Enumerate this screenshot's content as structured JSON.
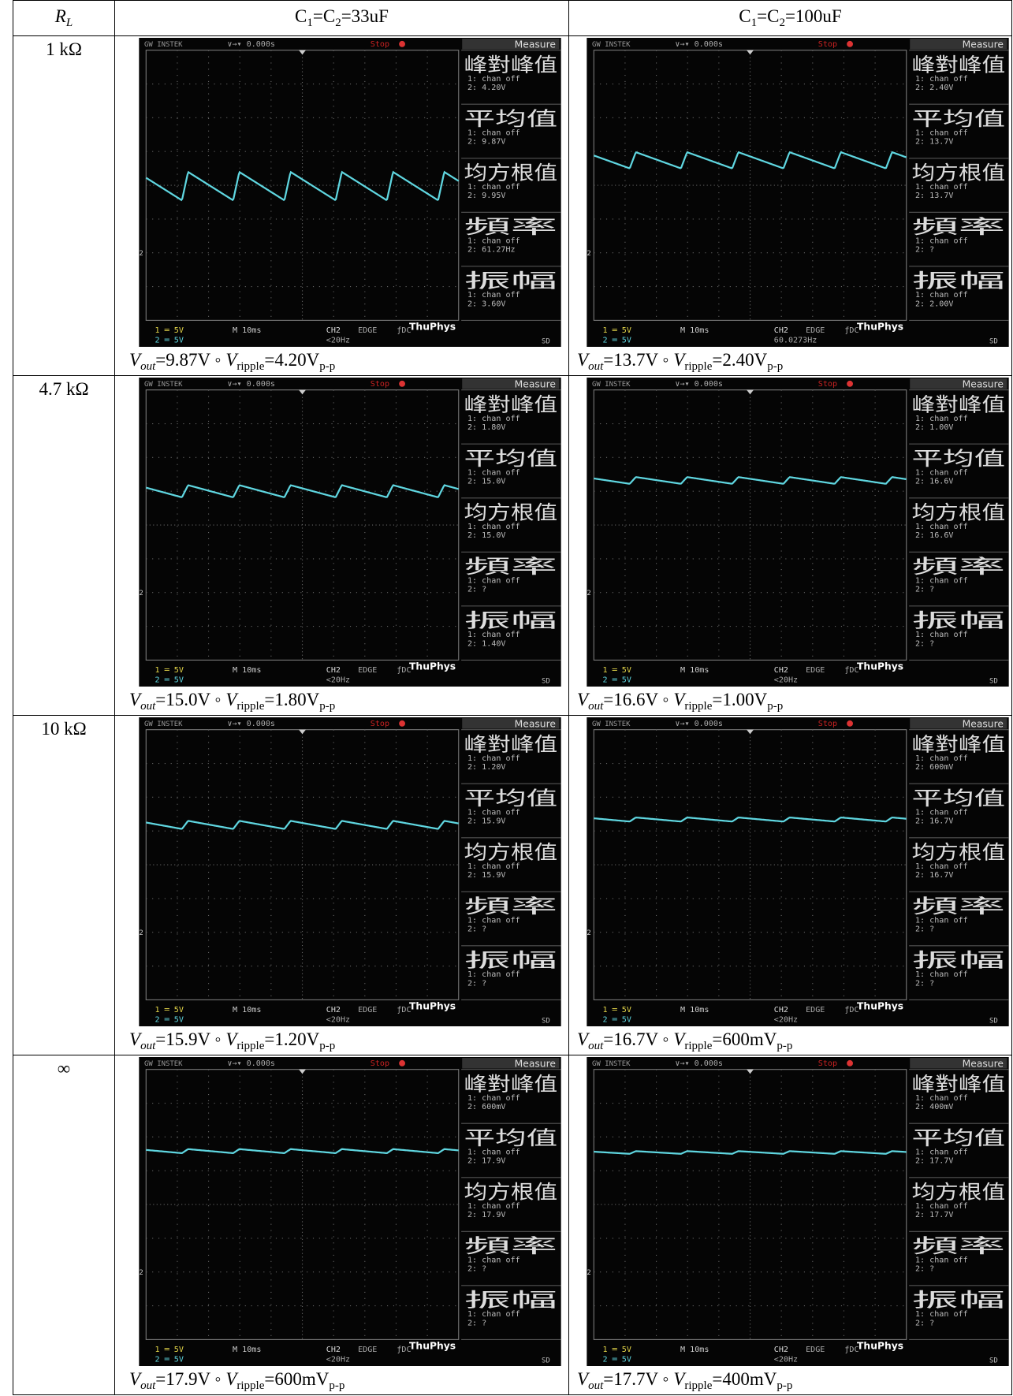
{
  "scope": {
    "brand": "GW INSTEK",
    "trigger": "∨→▾ 0.000s",
    "status": "Stop",
    "menu": "Measure",
    "labels": [
      "峰對峰值",
      "平均值",
      "均方根值",
      "頻率",
      "振幅"
    ],
    "ch1_off": "1: chan off",
    "ch2_prefix": "2: ",
    "ch1_scale": "1 ═ 5V",
    "ch2_scale": {
      "value": 5,
      "label": "2 ═ 5V"
    },
    "timebase": "M 10ms",
    "source": "CH2",
    "mode": "EDGE",
    "coupling": "ƒDC",
    "watermark": "ThuPhys",
    "sd": "SD",
    "ground_marker": "2"
  },
  "table": {
    "header": [
      [
        {
          "text": "R",
          "style": "i"
        },
        {
          "text": "L",
          "style": "subi"
        }
      ],
      [
        {
          "text": "C"
        },
        {
          "text": "1",
          "style": "sub"
        },
        {
          "text": "=C"
        },
        {
          "text": "2",
          "style": "sub"
        },
        {
          "text": "=33uF"
        }
      ],
      [
        {
          "text": "C"
        },
        {
          "text": "1",
          "style": "sub"
        },
        {
          "text": "=C"
        },
        {
          "text": "2",
          "style": "sub"
        },
        {
          "text": "=100uF"
        }
      ]
    ],
    "rows": [
      {
        "label": "1 kΩ",
        "cells": [
          {
            "measures": [
              {
                "value": 4.2,
                "label": "4.20V"
              },
              {
                "value": 9.87,
                "label": "9.87V"
              },
              {
                "value": 9.95,
                "label": "9.95V"
              },
              {
                "value": 61.27,
                "label": "61.27Hz"
              },
              {
                "value": 3.6,
                "label": "3.60V"
              }
            ],
            "trigger_freq": "<20Hz",
            "caption": [
              {
                "text": "V",
                "style": "i"
              },
              {
                "text": "out",
                "style": "subi"
              },
              {
                "text": "=9.87V ◦ "
              },
              {
                "text": "V",
                "style": "i"
              },
              {
                "text": "ripple",
                "style": "sub"
              },
              {
                "text": "=4.20V"
              },
              {
                "text": "p-p",
                "style": "sub"
              }
            ]
          },
          {
            "measures": [
              {
                "value": 2.4,
                "label": "2.40V"
              },
              {
                "value": 13.7,
                "label": "13.7V"
              },
              {
                "value": 13.7,
                "label": "13.7V"
              },
              "?",
              {
                "value": 2.0,
                "label": "2.00V"
              }
            ],
            "trigger_freq": "60.0273Hz",
            "caption": [
              {
                "text": "V",
                "style": "i"
              },
              {
                "text": "out",
                "style": "subi"
              },
              {
                "text": "=13.7V ◦ "
              },
              {
                "text": "V",
                "style": "i"
              },
              {
                "text": "ripple",
                "style": "sub"
              },
              {
                "text": "=2.40V"
              },
              {
                "text": "p-p",
                "style": "sub"
              }
            ]
          }
        ]
      },
      {
        "label": "4.7 kΩ",
        "cells": [
          {
            "measures": [
              {
                "value": 1.8,
                "label": "1.80V"
              },
              {
                "value": 15.0,
                "label": "15.0V"
              },
              {
                "value": 15.0,
                "label": "15.0V"
              },
              "?",
              {
                "value": 1.4,
                "label": "1.40V"
              }
            ],
            "trigger_freq": "<20Hz",
            "caption": [
              {
                "text": "V",
                "style": "i"
              },
              {
                "text": "out",
                "style": "subi"
              },
              {
                "text": "=15.0V ◦ "
              },
              {
                "text": "V",
                "style": "i"
              },
              {
                "text": "ripple",
                "style": "sub"
              },
              {
                "text": "=1.80V"
              },
              {
                "text": "p-p",
                "style": "sub"
              }
            ]
          },
          {
            "measures": [
              {
                "value": 1.0,
                "label": "1.00V"
              },
              {
                "value": 16.6,
                "label": "16.6V"
              },
              {
                "value": 16.6,
                "label": "16.6V"
              },
              "?",
              "?"
            ],
            "trigger_freq": "<20Hz",
            "caption": [
              {
                "text": "V",
                "style": "i"
              },
              {
                "text": "out",
                "style": "subi"
              },
              {
                "text": "=16.6V ◦ "
              },
              {
                "text": "V",
                "style": "i"
              },
              {
                "text": "ripple",
                "style": "sub"
              },
              {
                "text": "=1.00V"
              },
              {
                "text": "p-p",
                "style": "sub"
              }
            ]
          }
        ]
      },
      {
        "label": "10 kΩ",
        "cells": [
          {
            "measures": [
              {
                "value": 1.2,
                "label": "1.20V"
              },
              {
                "value": 15.9,
                "label": "15.9V"
              },
              {
                "value": 15.9,
                "label": "15.9V"
              },
              "?",
              "?"
            ],
            "trigger_freq": "<20Hz",
            "caption": [
              {
                "text": "V",
                "style": "i"
              },
              {
                "text": "out",
                "style": "subi"
              },
              {
                "text": "=15.9V ◦ "
              },
              {
                "text": "V",
                "style": "i"
              },
              {
                "text": "ripple",
                "style": "sub"
              },
              {
                "text": "=1.20V"
              },
              {
                "text": "p-p",
                "style": "sub"
              }
            ]
          },
          {
            "measures": [
              {
                "value": 0.6,
                "label": "600mV"
              },
              {
                "value": 16.7,
                "label": "16.7V"
              },
              {
                "value": 16.7,
                "label": "16.7V"
              },
              "?",
              "?"
            ],
            "trigger_freq": "<20Hz",
            "caption": [
              {
                "text": "V",
                "style": "i"
              },
              {
                "text": "out",
                "style": "subi"
              },
              {
                "text": "=16.7V ◦ "
              },
              {
                "text": "V",
                "style": "i"
              },
              {
                "text": "ripple",
                "style": "sub"
              },
              {
                "text": "=600mV"
              },
              {
                "text": "p-p",
                "style": "sub"
              }
            ]
          }
        ]
      },
      {
        "label": "∞",
        "cells": [
          {
            "measures": [
              {
                "value": 0.6,
                "label": "600mV"
              },
              {
                "value": 17.9,
                "label": "17.9V"
              },
              {
                "value": 17.9,
                "label": "17.9V"
              },
              "?",
              "?"
            ],
            "trigger_freq": "<20Hz",
            "caption": [
              {
                "text": "V",
                "style": "i"
              },
              {
                "text": "out",
                "style": "subi"
              },
              {
                "text": "=17.9V ◦ "
              },
              {
                "text": "V",
                "style": "i"
              },
              {
                "text": "ripple",
                "style": "sub"
              },
              {
                "text": "=600mV"
              },
              {
                "text": "p-p",
                "style": "sub"
              }
            ]
          },
          {
            "measures": [
              {
                "value": 0.4,
                "label": "400mV"
              },
              {
                "value": 17.7,
                "label": "17.7V"
              },
              {
                "value": 17.7,
                "label": "17.7V"
              },
              "?",
              "?"
            ],
            "trigger_freq": "<20Hz",
            "caption": [
              {
                "text": "V",
                "style": "i"
              },
              {
                "text": "out",
                "style": "subi"
              },
              {
                "text": "=17.7V ◦ "
              },
              {
                "text": "V",
                "style": "i"
              },
              {
                "text": "ripple",
                "style": "sub"
              },
              {
                "text": "=400mV"
              },
              {
                "text": "p-p",
                "style": "sub"
              }
            ]
          }
        ]
      }
    ]
  }
}
